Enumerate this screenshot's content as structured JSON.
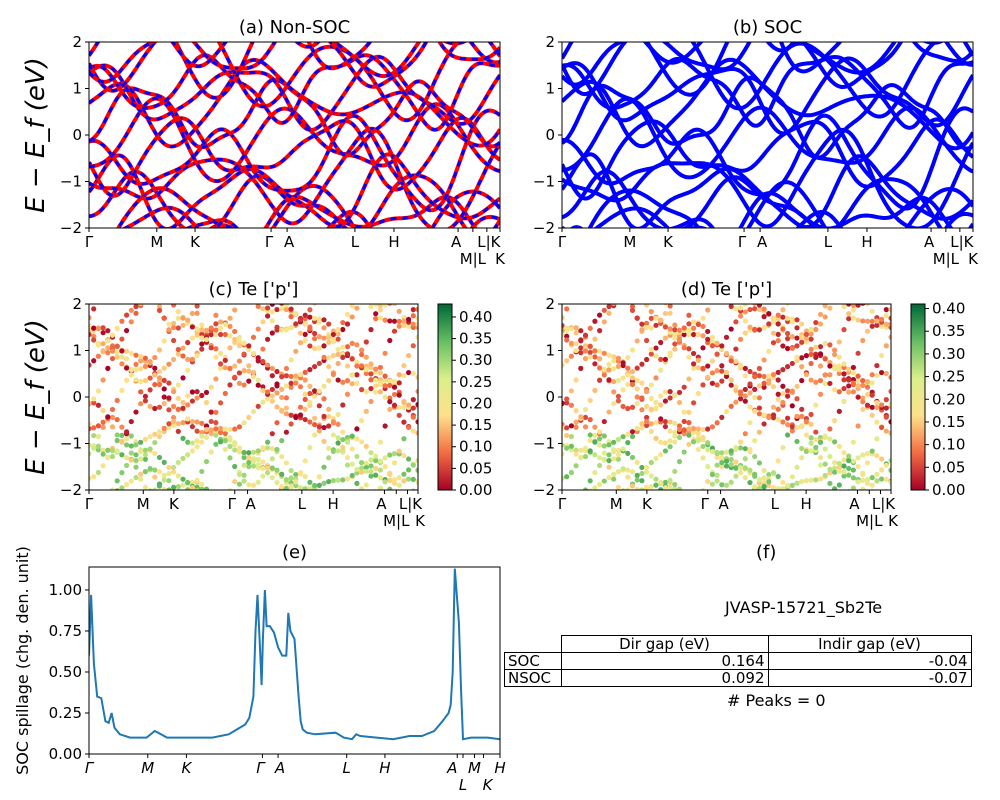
{
  "colors": {
    "nonsoc_line": "#ff0000",
    "nonsoc_dash": "#0000ff",
    "soc_line": "#0000ff",
    "spillage": "#1f77b4"
  },
  "kpath_labels": [
    "Γ",
    "M",
    "K",
    "Γ",
    "A",
    "L",
    "H",
    "A",
    "M|L",
    "L|K",
    "K"
  ],
  "spillage_kpath_labels": [
    "Γ",
    "M",
    "K",
    "Γ",
    "A",
    "L",
    "H",
    "A",
    "L",
    "M",
    "K",
    "H"
  ],
  "chart_data": [
    {
      "panel": "a",
      "type": "line",
      "title": "(a) Non-SOC",
      "ylabel": "E − E_f (eV)",
      "ylim": [
        -2,
        2
      ],
      "yticks": [
        "−2",
        "−1",
        "0",
        "1",
        "2"
      ],
      "legend": "none",
      "grid": false
    },
    {
      "panel": "b",
      "type": "line",
      "title": "(b) SOC",
      "ylim": [
        -2,
        2
      ],
      "yticks": [
        "−2",
        "−1",
        "0",
        "1",
        "2"
      ],
      "legend": "none",
      "grid": false
    },
    {
      "panel": "c",
      "type": "scatter",
      "title": "(c)  Te ['p']",
      "ylabel": "E − E_f (eV)",
      "ylim": [
        -2,
        2
      ],
      "yticks": [
        "−2",
        "−1",
        "0",
        "1",
        "2"
      ],
      "colormap": "RdYlGn",
      "colorbar_range": [
        0,
        0.43
      ],
      "colorbar_ticks": [
        "0.00",
        "0.05",
        "0.10",
        "0.15",
        "0.20",
        "0.25",
        "0.30",
        "0.35",
        "0.40"
      ]
    },
    {
      "panel": "d",
      "type": "scatter",
      "title": "(d) Te ['p']",
      "ylim": [
        -2,
        2
      ],
      "yticks": [
        "−2",
        "−1",
        "0",
        "1",
        "2"
      ],
      "colormap": "RdYlGn",
      "colorbar_range": [
        0,
        0.41
      ],
      "colorbar_ticks": [
        "0.00",
        "0.05",
        "0.10",
        "0.15",
        "0.20",
        "0.25",
        "0.30",
        "0.35",
        "0.40"
      ]
    },
    {
      "panel": "e",
      "type": "line",
      "title": "(e)",
      "ylabel": "SOC spillage (chg. den. unit)",
      "ylim": [
        0,
        1.14
      ],
      "yticks": [
        "0.00",
        "0.25",
        "0.50",
        "0.75",
        "1.00"
      ],
      "x": [
        0,
        0.005,
        0.012,
        0.02,
        0.03,
        0.04,
        0.048,
        0.055,
        0.062,
        0.075,
        0.1,
        0.14,
        0.16,
        0.175,
        0.19,
        0.21,
        0.3,
        0.34,
        0.36,
        0.38,
        0.39,
        0.4,
        0.405,
        0.41,
        0.415,
        0.42,
        0.423,
        0.428,
        0.432,
        0.44,
        0.45,
        0.46,
        0.47,
        0.48,
        0.485,
        0.49,
        0.5,
        0.51,
        0.515,
        0.52,
        0.53,
        0.55,
        0.6,
        0.62,
        0.64,
        0.65,
        0.66,
        0.7,
        0.74,
        0.78,
        0.81,
        0.84,
        0.86,
        0.875,
        0.88,
        0.885,
        0.89,
        0.9,
        0.905,
        0.91,
        0.93,
        0.97,
        1.0
      ],
      "y": [
        0.6,
        0.97,
        0.55,
        0.35,
        0.34,
        0.2,
        0.19,
        0.25,
        0.16,
        0.12,
        0.1,
        0.1,
        0.14,
        0.12,
        0.1,
        0.1,
        0.1,
        0.12,
        0.15,
        0.18,
        0.22,
        0.35,
        0.75,
        0.97,
        0.7,
        0.42,
        0.7,
        1.0,
        0.78,
        0.78,
        0.74,
        0.65,
        0.6,
        0.6,
        0.86,
        0.75,
        0.7,
        0.35,
        0.2,
        0.15,
        0.13,
        0.12,
        0.13,
        0.1,
        0.09,
        0.12,
        0.11,
        0.1,
        0.09,
        0.11,
        0.11,
        0.14,
        0.2,
        0.25,
        0.3,
        0.5,
        1.13,
        0.8,
        0.4,
        0.09,
        0.1,
        0.1,
        0.09
      ]
    }
  ],
  "panel_f": {
    "title": "(f)",
    "material": "JVASP-15721_Sb2Te",
    "table": {
      "headers": [
        "",
        "Dir gap (eV)",
        "Indir gap (eV)"
      ],
      "rows": [
        [
          "SOC",
          "0.164",
          "-0.04"
        ],
        [
          "NSOC",
          "0.092",
          "-0.07"
        ]
      ]
    },
    "peaks": "# Peaks = 0"
  }
}
